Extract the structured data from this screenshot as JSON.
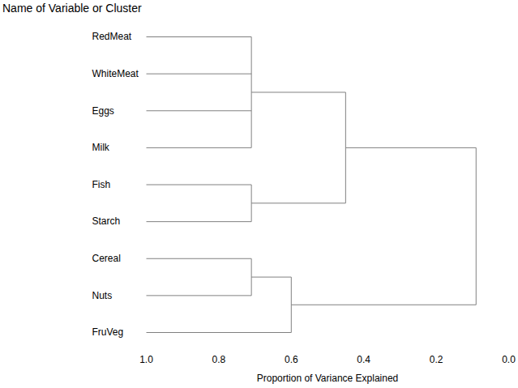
{
  "chart_data": {
    "type": "dendrogram",
    "x_label": "Proportion of Variance Explained",
    "y_label": "Name of Variable or Cluster",
    "xlim": [
      1,
      0
    ],
    "xticks": [
      {
        "value": 1,
        "label": "1.0"
      },
      0.8,
      0.6,
      0.4,
      0.2,
      {
        "value": 0,
        "label": "0.0"
      }
    ],
    "color": "#808080",
    "tree": {
      "value": 0.09,
      "children": [
        {
          "value": 0.45,
          "children": [
            {
              "value": 0.71,
              "children": [
                {
                  "name": "RedMeat",
                  "value": 1
                },
                {
                  "name": "WhiteMeat",
                  "value": 1
                },
                {
                  "name": "Eggs",
                  "value": 1
                },
                {
                  "name": "Milk",
                  "value": 1
                }
              ]
            },
            {
              "value": 0.71,
              "children": [
                {
                  "name": "Fish",
                  "value": 1
                },
                {
                  "name": "Starch",
                  "value": 1
                }
              ]
            }
          ]
        },
        {
          "value": 0.6,
          "children": [
            {
              "value": 0.71,
              "children": [
                {
                  "name": "Cereal",
                  "value": 1
                },
                {
                  "name": "Nuts",
                  "value": 1
                }
              ]
            },
            {
              "name": "FruVeg",
              "value": 1
            }
          ]
        }
      ]
    }
  }
}
